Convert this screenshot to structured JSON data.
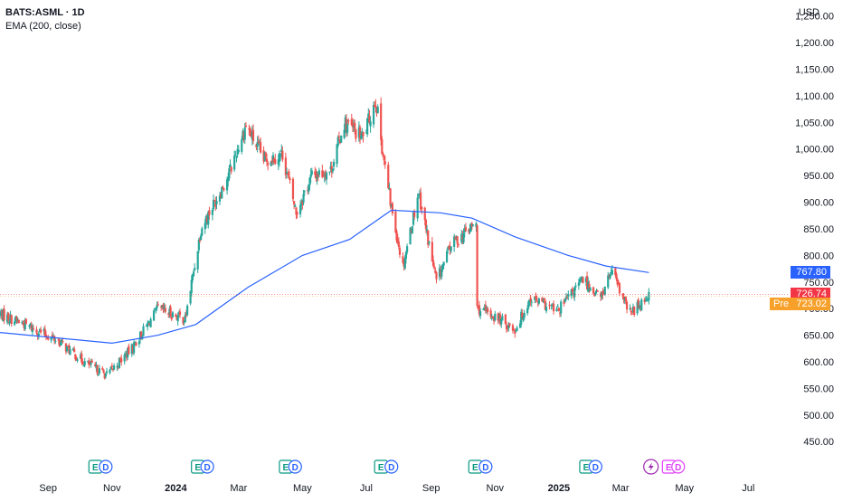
{
  "header": {
    "title": "BATS:ASML · 1D",
    "indicator": "EMA (200, close)",
    "currency": "USD"
  },
  "colors": {
    "up": "#26a69a",
    "down": "#ef5350",
    "ema": "#2962ff",
    "axis_text": "#131722",
    "event_earnings": "#089981",
    "event_dividend": "#2962ff",
    "event_split": "#9c27b0",
    "event_future": "#e040fb",
    "tag_ema": "#2962ff",
    "tag_last": "#f23645",
    "tag_pre": "#f7a02a"
  },
  "tags": {
    "ema_value": "767.80",
    "last_value": "726.74",
    "pre_label": "Pre",
    "pre_value": "723.02"
  },
  "chart_data": {
    "type": "candlestick",
    "title": "BATS:ASML · 1D",
    "y_axis_side": "right",
    "ylim": [
      430,
      1280
    ],
    "y_ticks": [
      "1,250.00",
      "1,200.00",
      "1,150.00",
      "1,100.00",
      "1,050.00",
      "1,000.00",
      "950.00",
      "900.00",
      "850.00",
      "800.00",
      "750.00",
      "700.00",
      "650.00",
      "600.00",
      "550.00",
      "500.00",
      "450.00"
    ],
    "y_tick_values": [
      1250,
      1200,
      1150,
      1100,
      1050,
      1000,
      950,
      900,
      850,
      800,
      750,
      700,
      650,
      600,
      550,
      500,
      450
    ],
    "x_ticks": [
      {
        "label": "Sep",
        "date": "2023-09-01",
        "bold": false
      },
      {
        "label": "Nov",
        "date": "2023-11-01",
        "bold": false
      },
      {
        "label": "2024",
        "date": "2024-01-01",
        "bold": true
      },
      {
        "label": "Mar",
        "date": "2024-03-01",
        "bold": false
      },
      {
        "label": "May",
        "date": "2024-05-01",
        "bold": false
      },
      {
        "label": "Jul",
        "date": "2024-07-01",
        "bold": false
      },
      {
        "label": "Sep",
        "date": "2024-09-01",
        "bold": false
      },
      {
        "label": "Nov",
        "date": "2024-11-01",
        "bold": false
      },
      {
        "label": "2025",
        "date": "2025-01-01",
        "bold": true
      },
      {
        "label": "Mar",
        "date": "2025-03-01",
        "bold": false
      },
      {
        "label": "May",
        "date": "2025-05-01",
        "bold": false
      },
      {
        "label": "Jul",
        "date": "2025-07-01",
        "bold": false
      }
    ],
    "xlim": [
      "2023-07-17",
      "2025-07-31"
    ],
    "price_anchors": [
      {
        "date": "2023-07-17",
        "close": 690
      },
      {
        "date": "2023-08-10",
        "close": 670
      },
      {
        "date": "2023-09-10",
        "close": 640
      },
      {
        "date": "2023-10-05",
        "close": 600
      },
      {
        "date": "2023-10-27",
        "close": 575
      },
      {
        "date": "2023-11-20",
        "close": 625
      },
      {
        "date": "2023-12-15",
        "close": 700
      },
      {
        "date": "2024-01-10",
        "close": 680
      },
      {
        "date": "2024-01-25",
        "close": 850
      },
      {
        "date": "2024-02-20",
        "close": 950
      },
      {
        "date": "2024-03-08",
        "close": 1045
      },
      {
        "date": "2024-03-25",
        "close": 980
      },
      {
        "date": "2024-04-12",
        "close": 990
      },
      {
        "date": "2024-04-25",
        "close": 880
      },
      {
        "date": "2024-05-10",
        "close": 950
      },
      {
        "date": "2024-05-28",
        "close": 960
      },
      {
        "date": "2024-06-10",
        "close": 1050
      },
      {
        "date": "2024-06-28",
        "close": 1020
      },
      {
        "date": "2024-07-10",
        "close": 1095
      },
      {
        "date": "2024-07-17",
        "close": 990
      },
      {
        "date": "2024-07-24",
        "close": 900
      },
      {
        "date": "2024-08-05",
        "close": 780
      },
      {
        "date": "2024-08-20",
        "close": 920
      },
      {
        "date": "2024-09-06",
        "close": 750
      },
      {
        "date": "2024-09-20",
        "close": 820
      },
      {
        "date": "2024-10-14",
        "close": 860
      },
      {
        "date": "2024-10-15",
        "close": 700
      },
      {
        "date": "2024-11-05",
        "close": 680
      },
      {
        "date": "2024-11-20",
        "close": 660
      },
      {
        "date": "2024-12-05",
        "close": 720
      },
      {
        "date": "2024-12-31",
        "close": 695
      },
      {
        "date": "2025-01-24",
        "close": 755
      },
      {
        "date": "2025-02-10",
        "close": 720
      },
      {
        "date": "2025-02-20",
        "close": 770
      },
      {
        "date": "2025-03-10",
        "close": 690
      },
      {
        "date": "2025-03-28",
        "close": 727
      }
    ],
    "ema": [
      {
        "date": "2023-07-17",
        "value": 655
      },
      {
        "date": "2023-11-01",
        "value": 635
      },
      {
        "date": "2023-12-15",
        "value": 650
      },
      {
        "date": "2024-01-20",
        "value": 670
      },
      {
        "date": "2024-03-10",
        "value": 740
      },
      {
        "date": "2024-05-01",
        "value": 800
      },
      {
        "date": "2024-06-15",
        "value": 830
      },
      {
        "date": "2024-07-25",
        "value": 885
      },
      {
        "date": "2024-09-10",
        "value": 880
      },
      {
        "date": "2024-10-10",
        "value": 870
      },
      {
        "date": "2024-11-20",
        "value": 835
      },
      {
        "date": "2025-01-10",
        "value": 800
      },
      {
        "date": "2025-02-15",
        "value": 780
      },
      {
        "date": "2025-03-28",
        "value": 767.8
      }
    ],
    "events": [
      {
        "date": "2023-10-16",
        "type": "E"
      },
      {
        "date": "2023-10-26",
        "type": "D"
      },
      {
        "date": "2024-01-22",
        "type": "E"
      },
      {
        "date": "2024-01-31",
        "type": "D"
      },
      {
        "date": "2024-04-15",
        "type": "E"
      },
      {
        "date": "2024-04-24",
        "type": "D"
      },
      {
        "date": "2024-07-15",
        "type": "E"
      },
      {
        "date": "2024-07-25",
        "type": "D"
      },
      {
        "date": "2024-10-13",
        "type": "E"
      },
      {
        "date": "2024-10-23",
        "type": "D"
      },
      {
        "date": "2025-01-27",
        "type": "E"
      },
      {
        "date": "2025-02-05",
        "type": "D"
      },
      {
        "date": "2025-03-30",
        "type": "S"
      },
      {
        "date": "2025-04-16",
        "type": "E"
      },
      {
        "date": "2025-04-25",
        "type": "D"
      }
    ],
    "last_price": 726.74,
    "pre_price": 723.02,
    "ema_last": 767.8
  }
}
